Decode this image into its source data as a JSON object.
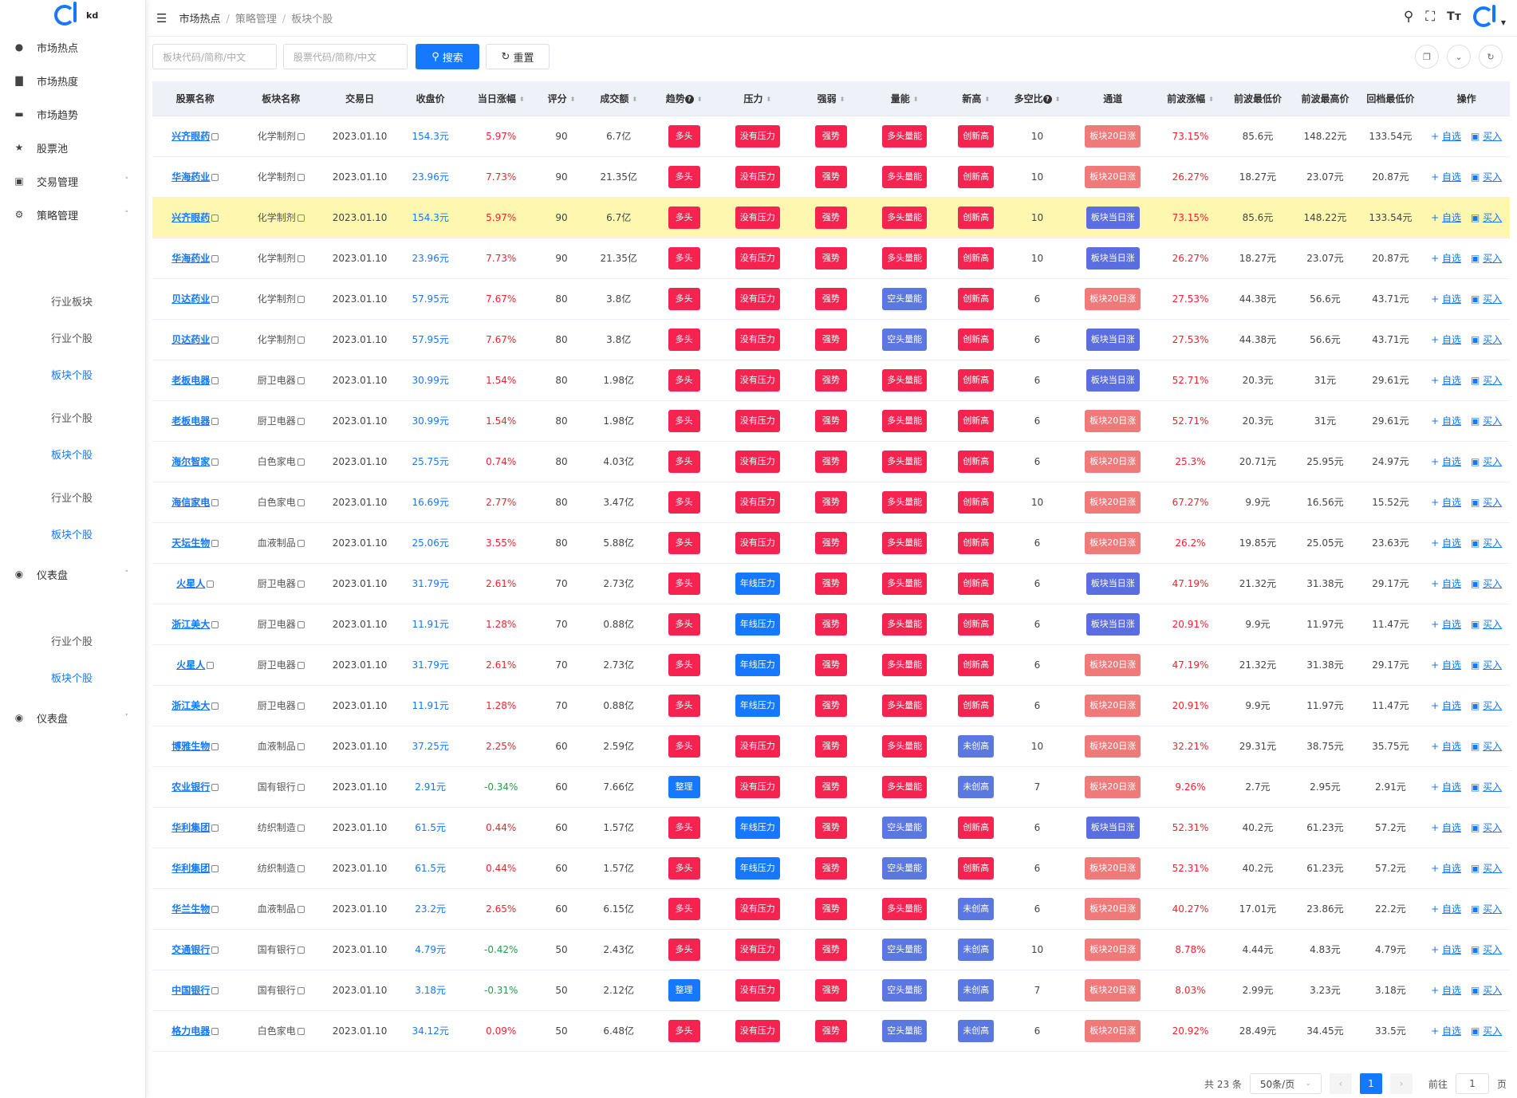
{
  "logo": {
    "text": "kd"
  },
  "menu": [
    {
      "label": "市场热点",
      "icon": "globe-icon"
    },
    {
      "label": "市场热度",
      "icon": "bar-chart-icon"
    },
    {
      "label": "市场趋势",
      "icon": "monitor-icon"
    },
    {
      "label": "股票池",
      "icon": "star-icon"
    },
    {
      "label": "交易管理",
      "icon": "cart-icon",
      "chevron": "down"
    },
    {
      "label": "策略管理",
      "icon": "gear-icon",
      "chevron": "up"
    }
  ],
  "submenu": [
    {
      "label": "行业板块",
      "active": false
    },
    {
      "label": "行业个股",
      "active": false
    },
    {
      "label": "板块个股",
      "active": true
    },
    {
      "label": "行业个股",
      "active": false
    },
    {
      "label": "板块个股",
      "active": true
    },
    {
      "label": "行业个股",
      "active": false
    },
    {
      "label": "板块个股",
      "active": true
    }
  ],
  "dashboard1": {
    "label": "仪表盘"
  },
  "submenu2": [
    {
      "label": "行业个股"
    },
    {
      "label": "板块个股"
    }
  ],
  "dashboard2": {
    "label": "仪表盘"
  },
  "breadcrumb": {
    "a": "市场热点",
    "b": "策略管理",
    "c": "板块个股",
    "sep": "/"
  },
  "search": {
    "sector_placeholder": "板块代码/简称/中文",
    "stock_placeholder": "股票代码/简称/中文",
    "search_label": "搜索",
    "reset_label": "重置"
  },
  "columns": [
    "股票名称",
    "板块名称",
    "交易日",
    "收盘价",
    "当日涨幅",
    "评分",
    "成交额",
    "趋势",
    "压力",
    "强弱",
    "量能",
    "新高",
    "多空比",
    "通道",
    "前波涨幅",
    "前波最低价",
    "前波最高价",
    "回档最低价",
    "操作"
  ],
  "ops": {
    "add": "自选",
    "buy": "买入"
  },
  "rows": [
    [
      "兴齐眼药",
      "化学制剂",
      "2023.01.10",
      "154.3元",
      "5.97%",
      "90",
      "6.7亿",
      "多头",
      "没有压力",
      "强势",
      "多头量能",
      "创新高",
      "10",
      "板块20日涨",
      "73.15%",
      "85.6元",
      "148.22元",
      "133.54元"
    ],
    [
      "华海药业",
      "化学制剂",
      "2023.01.10",
      "23.96元",
      "7.73%",
      "90",
      "21.35亿",
      "多头",
      "没有压力",
      "强势",
      "多头量能",
      "创新高",
      "10",
      "板块20日涨",
      "26.27%",
      "18.27元",
      "23.07元",
      "20.87元"
    ],
    [
      "兴齐眼药",
      "化学制剂",
      "2023.01.10",
      "154.3元",
      "5.97%",
      "90",
      "6.7亿",
      "多头",
      "没有压力",
      "强势",
      "多头量能",
      "创新高",
      "10",
      "板块当日涨",
      "73.15%",
      "85.6元",
      "148.22元",
      "133.54元"
    ],
    [
      "华海药业",
      "化学制剂",
      "2023.01.10",
      "23.96元",
      "7.73%",
      "90",
      "21.35亿",
      "多头",
      "没有压力",
      "强势",
      "多头量能",
      "创新高",
      "10",
      "板块当日涨",
      "26.27%",
      "18.27元",
      "23.07元",
      "20.87元"
    ],
    [
      "贝达药业",
      "化学制剂",
      "2023.01.10",
      "57.95元",
      "7.67%",
      "80",
      "3.8亿",
      "多头",
      "没有压力",
      "强势",
      "空头量能",
      "创新高",
      "6",
      "板块20日涨",
      "27.53%",
      "44.38元",
      "56.6元",
      "43.71元"
    ],
    [
      "贝达药业",
      "化学制剂",
      "2023.01.10",
      "57.95元",
      "7.67%",
      "80",
      "3.8亿",
      "多头",
      "没有压力",
      "强势",
      "空头量能",
      "创新高",
      "6",
      "板块当日涨",
      "27.53%",
      "44.38元",
      "56.6元",
      "43.71元"
    ],
    [
      "老板电器",
      "厨卫电器",
      "2023.01.10",
      "30.99元",
      "1.54%",
      "80",
      "1.98亿",
      "多头",
      "没有压力",
      "强势",
      "多头量能",
      "创新高",
      "6",
      "板块当日涨",
      "52.71%",
      "20.3元",
      "31元",
      "29.61元"
    ],
    [
      "老板电器",
      "厨卫电器",
      "2023.01.10",
      "30.99元",
      "1.54%",
      "80",
      "1.98亿",
      "多头",
      "没有压力",
      "强势",
      "多头量能",
      "创新高",
      "6",
      "板块20日涨",
      "52.71%",
      "20.3元",
      "31元",
      "29.61元"
    ],
    [
      "海尔智家",
      "白色家电",
      "2023.01.10",
      "25.75元",
      "0.74%",
      "80",
      "4.03亿",
      "多头",
      "没有压力",
      "强势",
      "多头量能",
      "创新高",
      "6",
      "板块20日涨",
      "25.3%",
      "20.71元",
      "25.95元",
      "24.97元"
    ],
    [
      "海信家电",
      "白色家电",
      "2023.01.10",
      "16.69元",
      "2.77%",
      "80",
      "3.47亿",
      "多头",
      "没有压力",
      "强势",
      "多头量能",
      "创新高",
      "10",
      "板块20日涨",
      "67.27%",
      "9.9元",
      "16.56元",
      "15.52元"
    ],
    [
      "天坛生物",
      "血液制品",
      "2023.01.10",
      "25.06元",
      "3.55%",
      "80",
      "5.88亿",
      "多头",
      "没有压力",
      "强势",
      "多头量能",
      "创新高",
      "6",
      "板块20日涨",
      "26.2%",
      "19.85元",
      "25.05元",
      "23.63元"
    ],
    [
      "火星人",
      "厨卫电器",
      "2023.01.10",
      "31.79元",
      "2.61%",
      "70",
      "2.73亿",
      "多头",
      "年线压力",
      "强势",
      "多头量能",
      "创新高",
      "6",
      "板块当日涨",
      "47.19%",
      "21.32元",
      "31.38元",
      "29.17元"
    ],
    [
      "浙江美大",
      "厨卫电器",
      "2023.01.10",
      "11.91元",
      "1.28%",
      "70",
      "0.88亿",
      "多头",
      "年线压力",
      "强势",
      "多头量能",
      "创新高",
      "6",
      "板块当日涨",
      "20.91%",
      "9.9元",
      "11.97元",
      "11.47元"
    ],
    [
      "火星人",
      "厨卫电器",
      "2023.01.10",
      "31.79元",
      "2.61%",
      "70",
      "2.73亿",
      "多头",
      "年线压力",
      "强势",
      "多头量能",
      "创新高",
      "6",
      "板块20日涨",
      "47.19%",
      "21.32元",
      "31.38元",
      "29.17元"
    ],
    [
      "浙江美大",
      "厨卫电器",
      "2023.01.10",
      "11.91元",
      "1.28%",
      "70",
      "0.88亿",
      "多头",
      "年线压力",
      "强势",
      "多头量能",
      "创新高",
      "6",
      "板块20日涨",
      "20.91%",
      "9.9元",
      "11.97元",
      "11.47元"
    ],
    [
      "博雅生物",
      "血液制品",
      "2023.01.10",
      "37.25元",
      "2.25%",
      "60",
      "2.59亿",
      "多头",
      "没有压力",
      "强势",
      "多头量能",
      "未创高",
      "10",
      "板块20日涨",
      "32.21%",
      "29.31元",
      "38.75元",
      "35.75元"
    ],
    [
      "农业银行",
      "国有银行",
      "2023.01.10",
      "2.91元",
      "-0.34%",
      "60",
      "7.66亿",
      "整理",
      "没有压力",
      "强势",
      "多头量能",
      "未创高",
      "7",
      "板块20日涨",
      "9.26%",
      "2.7元",
      "2.95元",
      "2.91元"
    ],
    [
      "华利集团",
      "纺织制造",
      "2023.01.10",
      "61.5元",
      "0.44%",
      "60",
      "1.57亿",
      "多头",
      "年线压力",
      "强势",
      "空头量能",
      "创新高",
      "6",
      "板块当日涨",
      "52.31%",
      "40.2元",
      "61.23元",
      "57.2元"
    ],
    [
      "华利集团",
      "纺织制造",
      "2023.01.10",
      "61.5元",
      "0.44%",
      "60",
      "1.57亿",
      "多头",
      "年线压力",
      "强势",
      "空头量能",
      "创新高",
      "6",
      "板块20日涨",
      "52.31%",
      "40.2元",
      "61.23元",
      "57.2元"
    ],
    [
      "华兰生物",
      "血液制品",
      "2023.01.10",
      "23.2元",
      "2.65%",
      "60",
      "6.15亿",
      "多头",
      "没有压力",
      "强势",
      "多头量能",
      "未创高",
      "6",
      "板块20日涨",
      "40.27%",
      "17.01元",
      "23.86元",
      "22.2元"
    ],
    [
      "交通银行",
      "国有银行",
      "2023.01.10",
      "4.79元",
      "-0.42%",
      "50",
      "2.43亿",
      "多头",
      "没有压力",
      "强势",
      "空头量能",
      "未创高",
      "10",
      "板块20日涨",
      "8.78%",
      "4.44元",
      "4.83元",
      "4.79元"
    ],
    [
      "中国银行",
      "国有银行",
      "2023.01.10",
      "3.18元",
      "-0.31%",
      "50",
      "2.12亿",
      "整理",
      "没有压力",
      "强势",
      "空头量能",
      "未创高",
      "7",
      "板块20日涨",
      "8.03%",
      "2.99元",
      "3.23元",
      "3.18元"
    ],
    [
      "格力电器",
      "白色家电",
      "2023.01.10",
      "34.12元",
      "0.09%",
      "50",
      "6.48亿",
      "多头",
      "没有压力",
      "强势",
      "空头量能",
      "未创高",
      "6",
      "板块20日涨",
      "20.92%",
      "28.49元",
      "34.45元",
      "33.5元"
    ]
  ],
  "highlight_row": 2,
  "pagination": {
    "total": "共 23 条",
    "page_size": "50条/页",
    "current": "1",
    "goto_label": "前往",
    "goto_value": "1",
    "page_suffix": "页"
  },
  "colors": {
    "primary": "#1677ff",
    "tag_red": "#f5234f",
    "tag_indigo": "#5b78e0",
    "channel_red": "#f07a7a",
    "channel_blue": "#5b6ee0",
    "highlight": "#fdf7b0"
  }
}
